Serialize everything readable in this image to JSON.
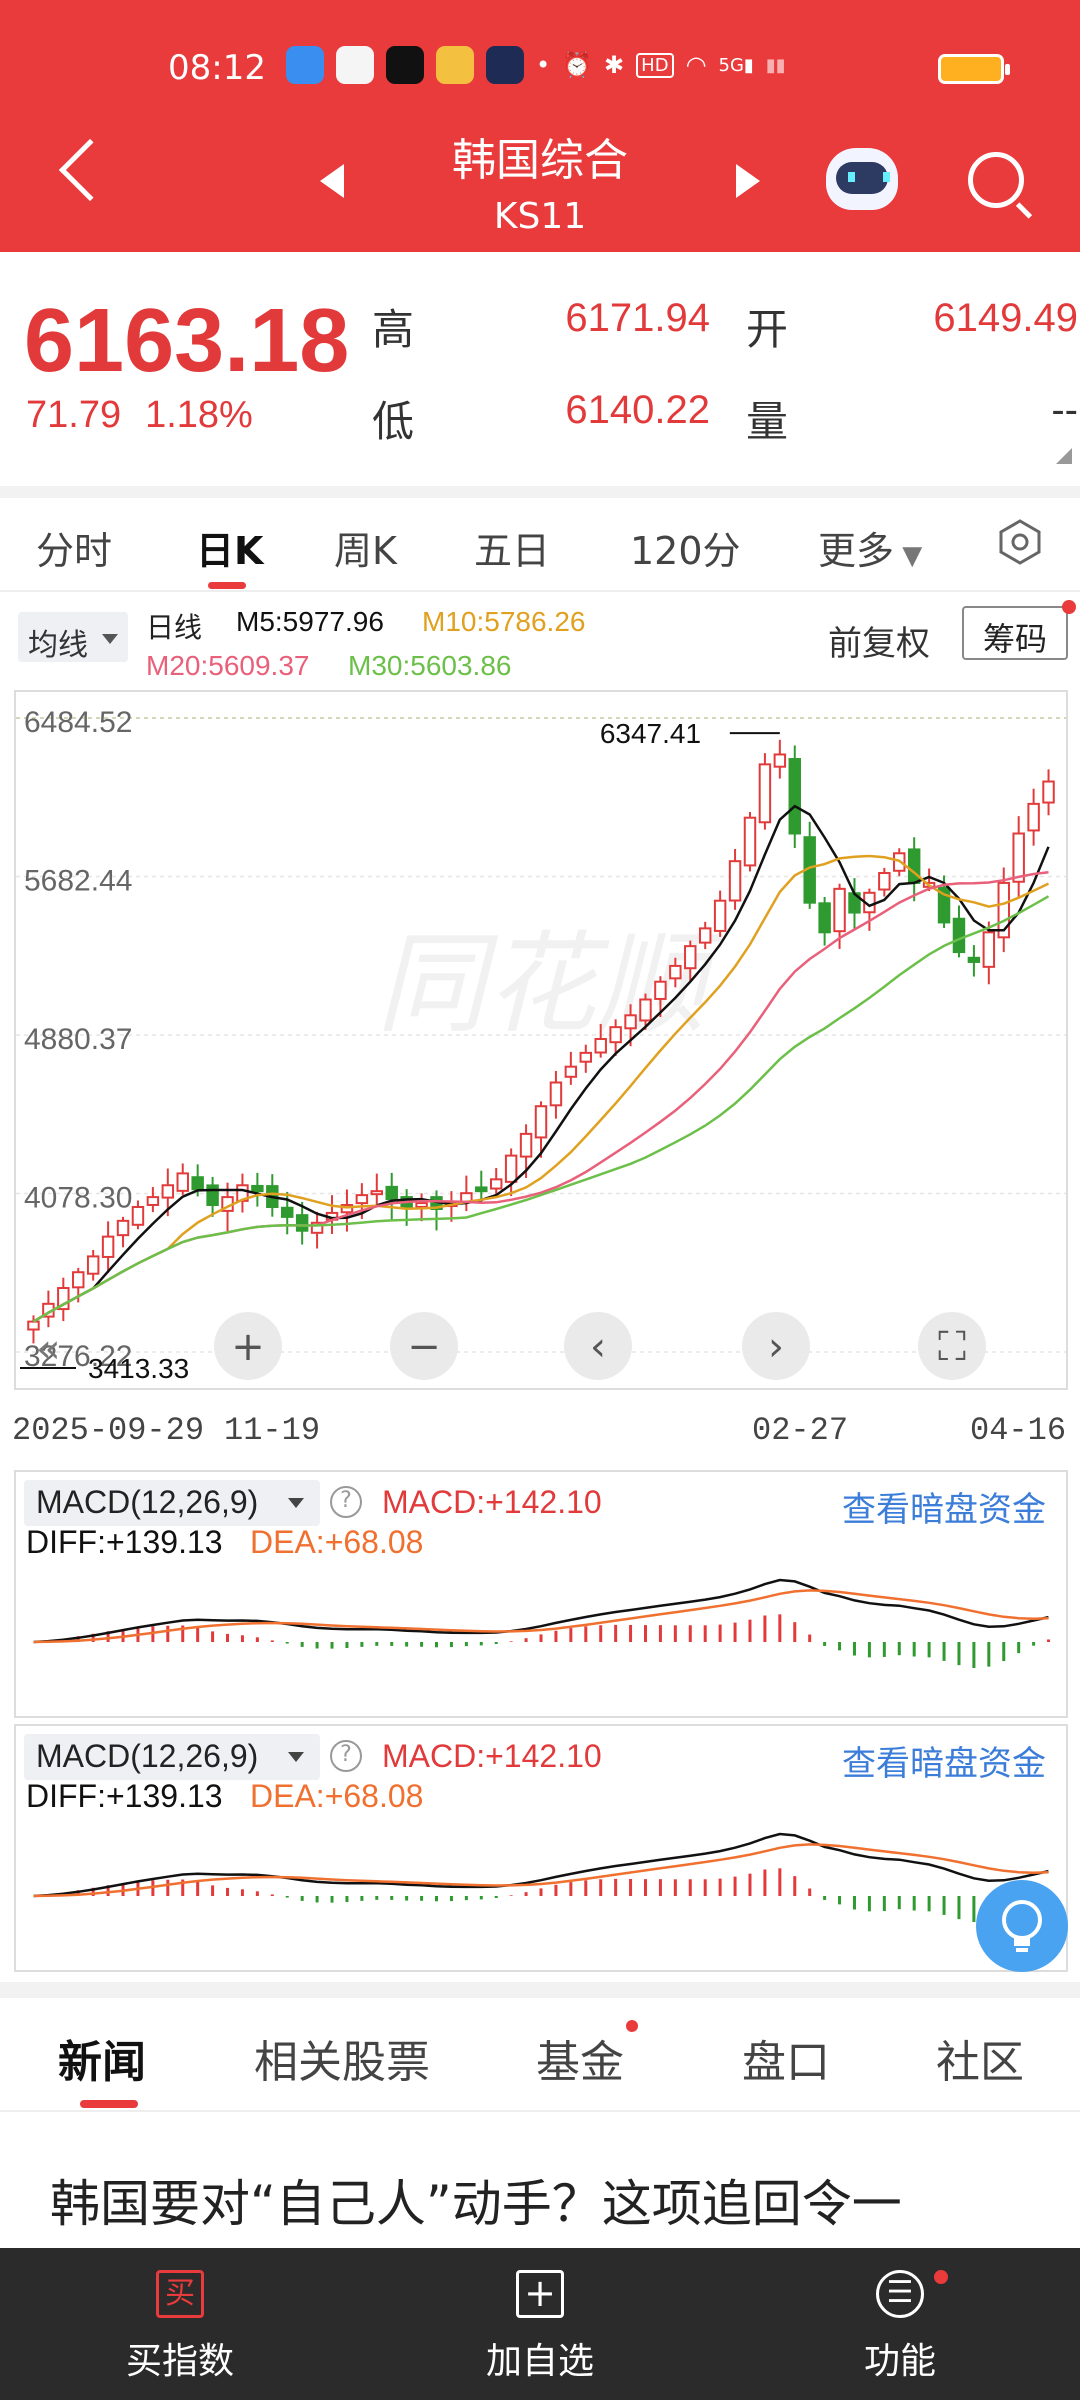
{
  "status_bar": {
    "time": "08:12"
  },
  "header": {
    "title": "韩国综合",
    "code": "KS11"
  },
  "quote": {
    "price": "6163.18",
    "change": "71.79",
    "change_pct": "1.18%",
    "high_label": "高",
    "high": "6171.94",
    "open_label": "开",
    "open": "6149.49",
    "low_label": "低",
    "low": "6140.22",
    "volume_label": "量",
    "volume": "--"
  },
  "tabs": [
    "分时",
    "日K",
    "周K",
    "五日",
    "120分",
    "更多"
  ],
  "active_tab": "日K",
  "chart_header": {
    "ma_button": "均线",
    "line_type": "日线",
    "m5": "M5:5977.96",
    "m10": "M10:5786.26",
    "m20": "M20:5609.37",
    "m30": "M30:5603.86",
    "adjust": "前复权",
    "chip_button": "筹码"
  },
  "colors": {
    "brand_red": "#e93a3c",
    "up": "#e23a3a",
    "down": "#2f9a2f",
    "m5": "#111111",
    "m10": "#e0a020",
    "m20": "#e9607a",
    "m30": "#6cc04a",
    "dea": "#f07030",
    "link": "#3b7dd8"
  },
  "chart_data": {
    "type": "candlestick",
    "y_ticks": [
      "6484.52",
      "5682.44",
      "4880.37",
      "4078.30",
      "3276.22"
    ],
    "ylim": [
      3276.22,
      6484.52
    ],
    "x_labels": [
      "2025-09-29",
      "11-19",
      "02-27",
      "04-16"
    ],
    "max_marker": "6347.41",
    "min_marker": "3413.33",
    "ohlc_close_approx": [
      3430,
      3520,
      3600,
      3680,
      3760,
      3860,
      3940,
      4010,
      4060,
      4120,
      4180,
      4100,
      4020,
      4060,
      4120,
      4090,
      4010,
      3960,
      3890,
      3930,
      3980,
      4020,
      4070,
      4090,
      4050,
      4010,
      4030,
      4000,
      4030,
      4080,
      4090,
      4150,
      4270,
      4380,
      4520,
      4640,
      4720,
      4790,
      4860,
      4920,
      4980,
      5060,
      5150,
      5230,
      5330,
      5420,
      5560,
      5760,
      5980,
      6250,
      6300,
      5900,
      5550,
      5400,
      5620,
      5500,
      5600,
      5700,
      5800,
      5650,
      5650,
      5450,
      5300,
      5250,
      5400,
      5650,
      5900,
      6050,
      6163
    ]
  },
  "macd_panels": [
    {
      "title": "MACD(12,26,9)",
      "macd": "MACD:+142.10",
      "diff": "DIFF:+139.13",
      "dea": "DEA:+68.08",
      "link": "查看暗盘资金"
    },
    {
      "title": "MACD(12,26,9)",
      "macd": "MACD:+142.10",
      "diff": "DIFF:+139.13",
      "dea": "DEA:+68.08",
      "link": "查看暗盘资金"
    }
  ],
  "news_tabs": [
    "新闻",
    "相关股票",
    "基金",
    "盘口",
    "社区"
  ],
  "news_headline": "韩国要对“自己人”动手？这项追回令一",
  "bottom_bar": [
    {
      "label": "买指数",
      "icon": "buy-icon"
    },
    {
      "label": "加自选",
      "icon": "add-watchlist-icon"
    },
    {
      "label": "功能",
      "icon": "menu-icon"
    }
  ]
}
